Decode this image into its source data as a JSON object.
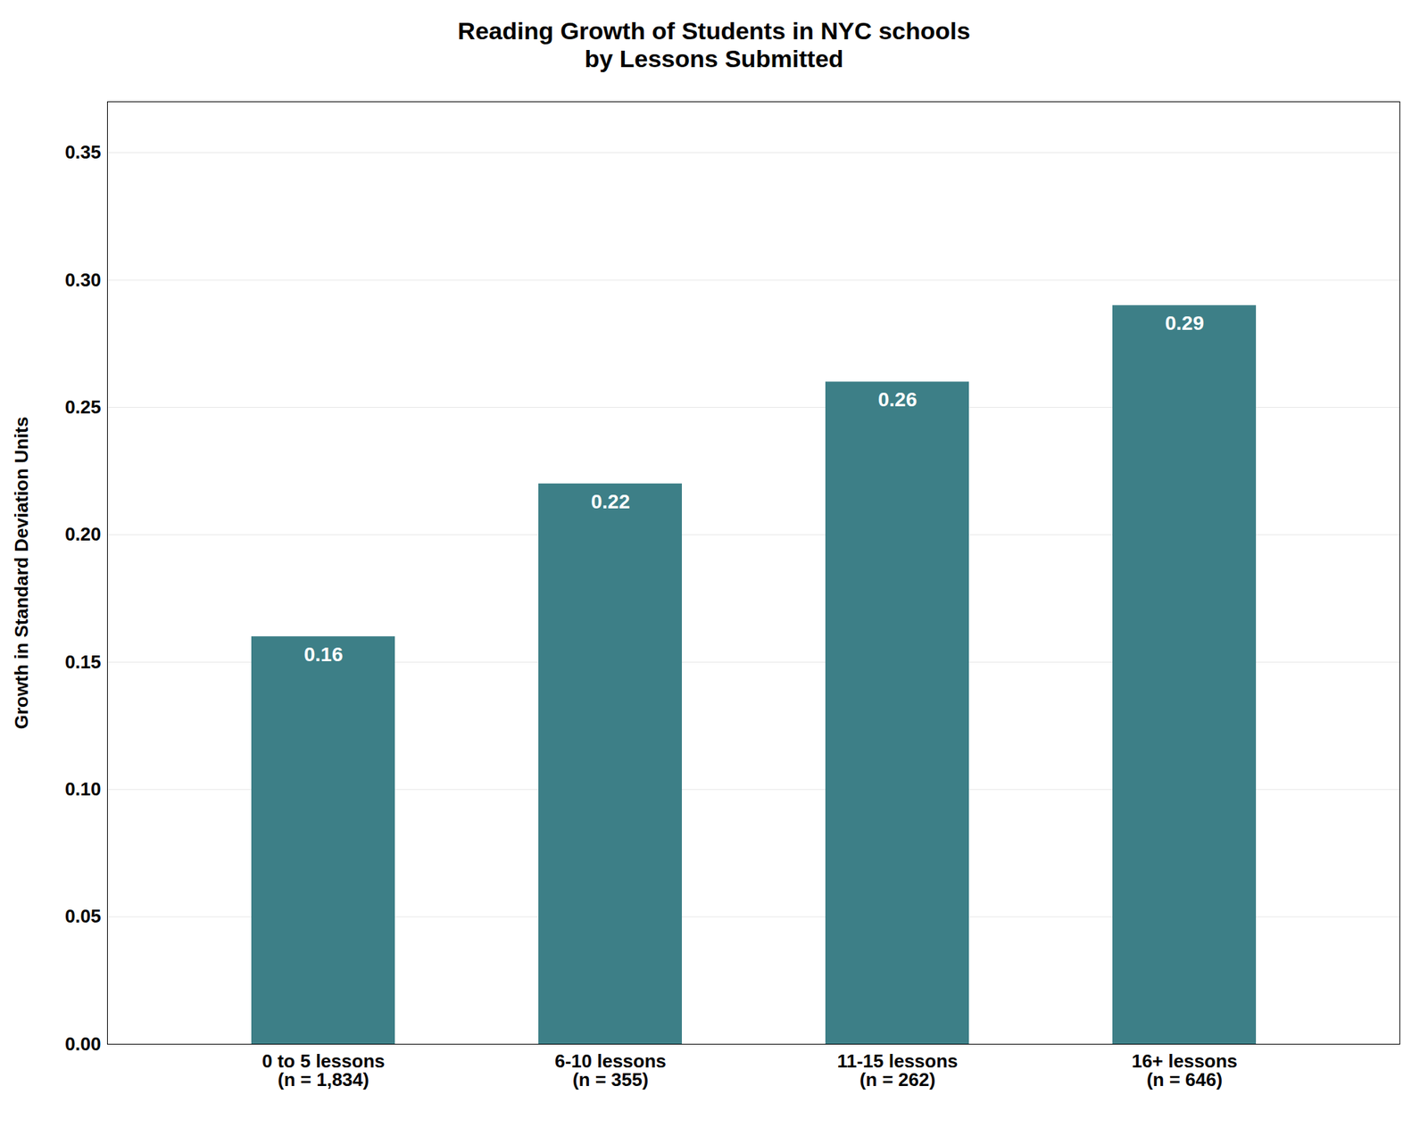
{
  "chart_data": {
    "type": "bar",
    "title": "Reading Growth of Students in NYC schools\nby Lessons Submitted",
    "ylabel": "Growth in Standard Deviation Units",
    "categories": [
      "0 to 5 lessons\n(n = 1,834)",
      "6-10 lessons\n(n = 355)",
      "11-15 lessons\n(n = 262)",
      "16+ lessons\n(n = 646)"
    ],
    "values": [
      0.16,
      0.22,
      0.26,
      0.29
    ],
    "color": "#3d7f87",
    "ylim": [
      0,
      0.37
    ],
    "yticks": [
      {
        "value": 0,
        "label": "0.00"
      },
      0.05,
      {
        "value": 0.1,
        "label": "0.10"
      },
      0.15,
      {
        "value": 0.2,
        "label": "0.20"
      },
      0.25,
      {
        "value": 0.3,
        "label": "0.30"
      },
      0.35
    ],
    "grid": true,
    "data_labels": true
  }
}
